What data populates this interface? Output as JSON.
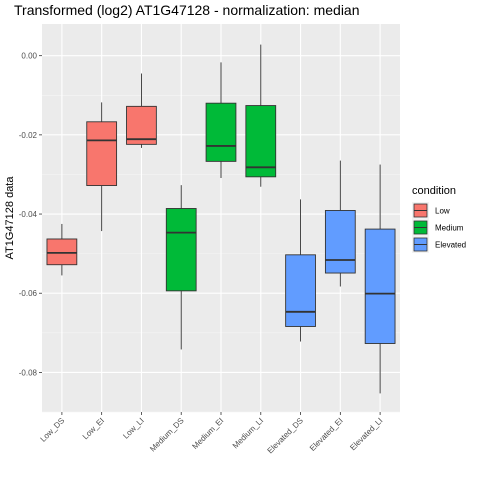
{
  "chart_data": {
    "type": "boxplot",
    "title": "Transformed (log2) AT1G47128 - normalization: median",
    "xlabel": "",
    "ylabel": "AT1G47128 data",
    "ylim": [
      -0.09,
      0.008
    ],
    "yticks": [
      0.0,
      -0.02,
      -0.04,
      -0.06,
      -0.08
    ],
    "ytick_labels": [
      "0.00",
      "-0.02",
      "-0.04",
      "-0.06",
      "-0.08"
    ],
    "grid": true,
    "legend": {
      "title": "condition",
      "position": "right",
      "entries": [
        {
          "name": "Low",
          "color": "#F8766D"
        },
        {
          "name": "Medium",
          "color": "#00BA38"
        },
        {
          "name": "Elevated",
          "color": "#619CFF"
        }
      ]
    },
    "categories": [
      "Low_DS",
      "Low_EI",
      "Low_LI",
      "Medium_DS",
      "Medium_EI",
      "Medium_LI",
      "Elevated_DS",
      "Elevated_EI",
      "Elevated_LI"
    ],
    "boxes": [
      {
        "category": "Low_DS",
        "group": "Low",
        "whisker_low": -0.0555,
        "q1": -0.0528,
        "median": -0.0498,
        "q3": -0.0463,
        "whisker_high": -0.0425
      },
      {
        "category": "Low_EI",
        "group": "Low",
        "whisker_low": -0.0443,
        "q1": -0.0328,
        "median": -0.0214,
        "q3": -0.0167,
        "whisker_high": -0.0118
      },
      {
        "category": "Low_LI",
        "group": "Low",
        "whisker_low": -0.0233,
        "q1": -0.0224,
        "median": -0.0211,
        "q3": -0.0128,
        "whisker_high": -0.0045
      },
      {
        "category": "Medium_DS",
        "group": "Medium",
        "whisker_low": -0.0742,
        "q1": -0.0594,
        "median": -0.0447,
        "q3": -0.0386,
        "whisker_high": -0.0327
      },
      {
        "category": "Medium_EI",
        "group": "Medium",
        "whisker_low": -0.0309,
        "q1": -0.0267,
        "median": -0.0228,
        "q3": -0.012,
        "whisker_high": -0.0017
      },
      {
        "category": "Medium_LI",
        "group": "Medium",
        "whisker_low": -0.0331,
        "q1": -0.0306,
        "median": -0.0282,
        "q3": -0.0126,
        "whisker_high": 0.0028
      },
      {
        "category": "Elevated_DS",
        "group": "Elevated",
        "whisker_low": -0.0722,
        "q1": -0.0684,
        "median": -0.0647,
        "q3": -0.0503,
        "whisker_high": -0.0363
      },
      {
        "category": "Elevated_EI",
        "group": "Elevated",
        "whisker_low": -0.0583,
        "q1": -0.0549,
        "median": -0.0516,
        "q3": -0.0391,
        "whisker_high": -0.0265
      },
      {
        "category": "Elevated_LI",
        "group": "Elevated",
        "whisker_low": -0.0853,
        "q1": -0.0727,
        "median": -0.0601,
        "q3": -0.0438,
        "whisker_high": -0.0275
      }
    ]
  }
}
